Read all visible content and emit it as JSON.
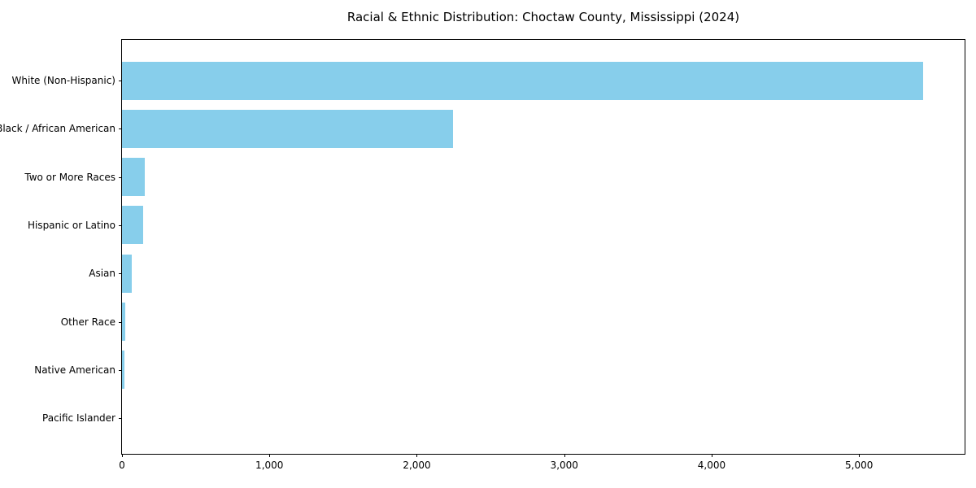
{
  "chart_data": {
    "type": "bar",
    "orientation": "horizontal",
    "title": "Racial & Ethnic Distribution: Choctaw County, Mississippi (2024)",
    "categories": [
      "White (Non-Hispanic)",
      "Black / African American",
      "Two or More Races",
      "Hispanic or Latino",
      "Asian",
      "Other Race",
      "Native American",
      "Pacific Islander"
    ],
    "values": [
      5435,
      2245,
      157,
      146,
      67,
      21,
      14,
      0
    ],
    "xlabel": "",
    "ylabel": "",
    "xlim": [
      0,
      5716
    ],
    "x_ticks": [
      0,
      1000,
      2000,
      3000,
      4000,
      5000
    ],
    "x_tick_labels": [
      "0",
      "1,000",
      "2,000",
      "3,000",
      "4,000",
      "5,000"
    ],
    "bar_color": "#87CEEB",
    "axis_color": "#000000",
    "background_color": "#ffffff",
    "grid": false,
    "legend": null
  }
}
